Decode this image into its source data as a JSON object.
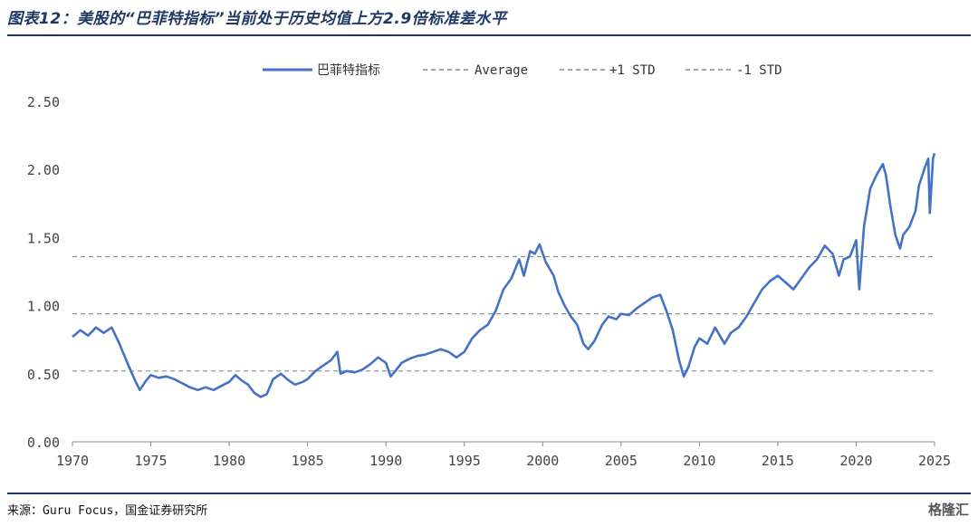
{
  "header": {
    "title": "图表12：美股的“巴菲特指标”当前处于历史均值上方2.9倍标准差水平"
  },
  "footer": {
    "source": "来源：Guru Focus，国金证券研究所",
    "watermark": "格隆汇"
  },
  "chart_data": {
    "type": "line",
    "title": "",
    "xlabel": "",
    "ylabel": "",
    "xlim": [
      1970,
      2025
    ],
    "ylim": [
      0,
      2.5
    ],
    "x_ticks": [
      "1970",
      "1975",
      "1980",
      "1985",
      "1990",
      "1995",
      "2000",
      "2005",
      "2010",
      "2015",
      "2020",
      "2025"
    ],
    "y_ticks": [
      "0.00",
      "0.50",
      "1.00",
      "1.50",
      "2.00",
      "2.50"
    ],
    "grid": false,
    "legend_position": "top",
    "legend": {
      "series": "巴菲特指标",
      "average": "Average",
      "plus_std": "+1 STD",
      "minus_std": "-1 STD"
    },
    "reference_lines": {
      "average": 0.94,
      "plus_std": 1.36,
      "minus_std": 0.52
    },
    "colors": {
      "series": "#4472c4",
      "reference": "#8c8c8c"
    },
    "series": [
      {
        "name": "巴菲特指标",
        "points": [
          [
            1970.0,
            0.77
          ],
          [
            1970.5,
            0.82
          ],
          [
            1971.0,
            0.78
          ],
          [
            1971.5,
            0.84
          ],
          [
            1972.0,
            0.8
          ],
          [
            1972.5,
            0.84
          ],
          [
            1973.0,
            0.72
          ],
          [
            1973.5,
            0.58
          ],
          [
            1974.0,
            0.45
          ],
          [
            1974.3,
            0.38
          ],
          [
            1974.7,
            0.45
          ],
          [
            1975.0,
            0.49
          ],
          [
            1975.5,
            0.47
          ],
          [
            1976.0,
            0.48
          ],
          [
            1976.5,
            0.46
          ],
          [
            1977.0,
            0.43
          ],
          [
            1977.5,
            0.4
          ],
          [
            1978.0,
            0.38
          ],
          [
            1978.5,
            0.4
          ],
          [
            1979.0,
            0.38
          ],
          [
            1979.5,
            0.41
          ],
          [
            1980.0,
            0.44
          ],
          [
            1980.4,
            0.49
          ],
          [
            1980.8,
            0.45
          ],
          [
            1981.2,
            0.42
          ],
          [
            1981.6,
            0.36
          ],
          [
            1982.0,
            0.33
          ],
          [
            1982.4,
            0.35
          ],
          [
            1982.8,
            0.46
          ],
          [
            1983.3,
            0.5
          ],
          [
            1983.8,
            0.45
          ],
          [
            1984.2,
            0.42
          ],
          [
            1984.7,
            0.44
          ],
          [
            1985.0,
            0.46
          ],
          [
            1985.5,
            0.52
          ],
          [
            1986.0,
            0.56
          ],
          [
            1986.5,
            0.6
          ],
          [
            1986.9,
            0.66
          ],
          [
            1987.1,
            0.5
          ],
          [
            1987.5,
            0.52
          ],
          [
            1988.0,
            0.51
          ],
          [
            1988.5,
            0.53
          ],
          [
            1989.0,
            0.57
          ],
          [
            1989.5,
            0.62
          ],
          [
            1990.0,
            0.58
          ],
          [
            1990.3,
            0.48
          ],
          [
            1990.6,
            0.52
          ],
          [
            1991.0,
            0.58
          ],
          [
            1991.5,
            0.61
          ],
          [
            1992.0,
            0.63
          ],
          [
            1992.5,
            0.64
          ],
          [
            1993.0,
            0.66
          ],
          [
            1993.5,
            0.68
          ],
          [
            1994.0,
            0.66
          ],
          [
            1994.5,
            0.62
          ],
          [
            1995.0,
            0.66
          ],
          [
            1995.5,
            0.76
          ],
          [
            1996.0,
            0.82
          ],
          [
            1996.5,
            0.86
          ],
          [
            1997.0,
            0.96
          ],
          [
            1997.5,
            1.12
          ],
          [
            1998.0,
            1.2
          ],
          [
            1998.5,
            1.34
          ],
          [
            1998.8,
            1.22
          ],
          [
            1999.2,
            1.4
          ],
          [
            1999.5,
            1.38
          ],
          [
            1999.8,
            1.45
          ],
          [
            2000.2,
            1.32
          ],
          [
            2000.7,
            1.22
          ],
          [
            2001.0,
            1.1
          ],
          [
            2001.4,
            1.0
          ],
          [
            2001.8,
            0.92
          ],
          [
            2002.2,
            0.86
          ],
          [
            2002.6,
            0.72
          ],
          [
            2002.9,
            0.68
          ],
          [
            2003.3,
            0.74
          ],
          [
            2003.8,
            0.86
          ],
          [
            2004.2,
            0.92
          ],
          [
            2004.7,
            0.9
          ],
          [
            2005.0,
            0.94
          ],
          [
            2005.5,
            0.93
          ],
          [
            2006.0,
            0.98
          ],
          [
            2006.5,
            1.02
          ],
          [
            2007.0,
            1.06
          ],
          [
            2007.5,
            1.08
          ],
          [
            2007.9,
            0.96
          ],
          [
            2008.3,
            0.82
          ],
          [
            2008.7,
            0.6
          ],
          [
            2009.0,
            0.48
          ],
          [
            2009.3,
            0.55
          ],
          [
            2009.7,
            0.7
          ],
          [
            2010.0,
            0.76
          ],
          [
            2010.5,
            0.72
          ],
          [
            2011.0,
            0.84
          ],
          [
            2011.6,
            0.72
          ],
          [
            2012.0,
            0.8
          ],
          [
            2012.5,
            0.84
          ],
          [
            2013.0,
            0.92
          ],
          [
            2013.5,
            1.02
          ],
          [
            2014.0,
            1.12
          ],
          [
            2014.5,
            1.18
          ],
          [
            2015.0,
            1.22
          ],
          [
            2015.6,
            1.16
          ],
          [
            2016.0,
            1.12
          ],
          [
            2016.5,
            1.2
          ],
          [
            2017.0,
            1.28
          ],
          [
            2017.5,
            1.34
          ],
          [
            2018.0,
            1.44
          ],
          [
            2018.5,
            1.38
          ],
          [
            2018.9,
            1.22
          ],
          [
            2019.2,
            1.34
          ],
          [
            2019.6,
            1.36
          ],
          [
            2020.0,
            1.48
          ],
          [
            2020.2,
            1.12
          ],
          [
            2020.5,
            1.58
          ],
          [
            2020.9,
            1.86
          ],
          [
            2021.3,
            1.96
          ],
          [
            2021.7,
            2.04
          ],
          [
            2021.9,
            1.96
          ],
          [
            2022.2,
            1.72
          ],
          [
            2022.5,
            1.52
          ],
          [
            2022.8,
            1.42
          ],
          [
            2023.0,
            1.52
          ],
          [
            2023.4,
            1.58
          ],
          [
            2023.8,
            1.7
          ],
          [
            2024.0,
            1.88
          ],
          [
            2024.4,
            2.02
          ],
          [
            2024.6,
            2.08
          ],
          [
            2024.7,
            1.68
          ],
          [
            2024.9,
            2.08
          ],
          [
            2025.0,
            2.12
          ]
        ]
      }
    ]
  }
}
